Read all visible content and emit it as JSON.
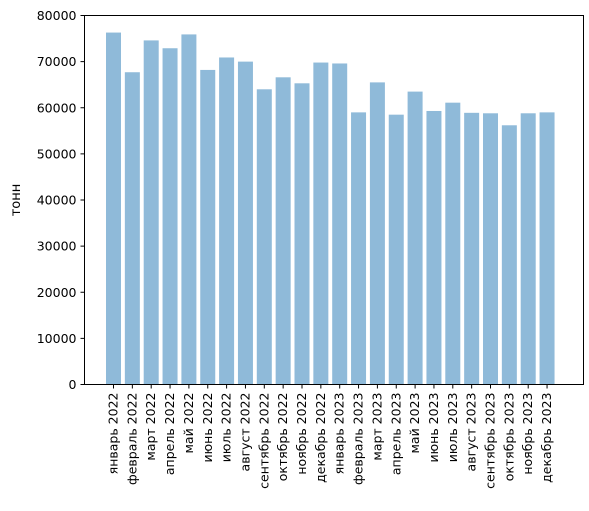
{
  "chart_data": {
    "type": "bar",
    "title": "",
    "xlabel": "",
    "ylabel": "тонн",
    "ylim": [
      0,
      80000
    ],
    "yticks": [
      0,
      10000,
      20000,
      30000,
      40000,
      50000,
      60000,
      70000,
      80000
    ],
    "grid": false,
    "bar_color": "#8fbad9",
    "categories": [
      "январь 2022",
      "февраль 2022",
      "март 2022",
      "апрель 2022",
      "май 2022",
      "июнь 2022",
      "июль 2022",
      "август 2022",
      "сентябрь 2022",
      "октябрь 2022",
      "ноябрь 2022",
      "декабрь 2022",
      "январь 2023",
      "февраль 2023",
      "март 2023",
      "апрель 2023",
      "май 2023",
      "июнь 2023",
      "июль 2023",
      "август 2023",
      "сентябрь 2023",
      "октябрь 2023",
      "ноябрь 2023",
      "декабрь 2023"
    ],
    "values": [
      76300,
      67700,
      74600,
      72900,
      75900,
      68200,
      70900,
      70000,
      64000,
      66600,
      65300,
      69800,
      69600,
      59000,
      65500,
      58500,
      63500,
      59300,
      61100,
      58900,
      58800,
      56200,
      58800,
      59000
    ]
  }
}
